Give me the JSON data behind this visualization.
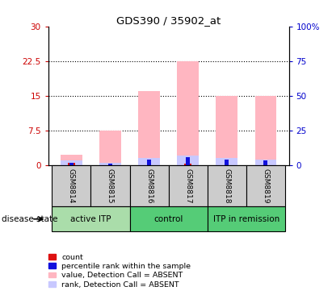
{
  "title": "GDS390 / 35902_at",
  "samples": [
    "GSM8814",
    "GSM8815",
    "GSM8816",
    "GSM8817",
    "GSM8818",
    "GSM8819"
  ],
  "group_defs": [
    {
      "label": "active ITP",
      "start": 0,
      "end": 1,
      "color": "#AADDAA"
    },
    {
      "label": "control",
      "start": 2,
      "end": 3,
      "color": "#55CC77"
    },
    {
      "label": "ITP in remission",
      "start": 4,
      "end": 5,
      "color": "#55CC77"
    }
  ],
  "value_absent": [
    2.2,
    7.5,
    16.0,
    22.5,
    15.0,
    15.0
  ],
  "rank_absent": [
    1.0,
    0.5,
    1.5,
    2.0,
    1.5,
    1.2
  ],
  "count_red": [
    0.6,
    0.0,
    0.0,
    0.3,
    0.0,
    0.0
  ],
  "rank_blue": [
    0.5,
    0.4,
    1.2,
    1.8,
    1.3,
    1.1
  ],
  "ylim_left": [
    0,
    30
  ],
  "ylim_right": [
    0,
    100
  ],
  "yticks_left": [
    0,
    7.5,
    15,
    22.5,
    30
  ],
  "ytick_labels_left": [
    "0",
    "7.5",
    "15",
    "22.5",
    "30"
  ],
  "yticks_right": [
    0,
    25,
    50,
    75,
    100
  ],
  "ytick_labels_right": [
    "0",
    "25",
    "50",
    "75",
    "100%"
  ],
  "color_value_absent": "#FFB6C1",
  "color_rank_absent": "#C8C8FF",
  "color_count": "#DD1111",
  "color_rank": "#1111DD",
  "background_plot": "#FFFFFF",
  "background_sample": "#CCCCCC",
  "bar_width": 0.55,
  "disease_state_label": "disease state",
  "legend_items": [
    {
      "color": "#DD1111",
      "label": "count"
    },
    {
      "color": "#1111DD",
      "label": "percentile rank within the sample"
    },
    {
      "color": "#FFB6C1",
      "label": "value, Detection Call = ABSENT"
    },
    {
      "color": "#C8C8FF",
      "label": "rank, Detection Call = ABSENT"
    }
  ]
}
